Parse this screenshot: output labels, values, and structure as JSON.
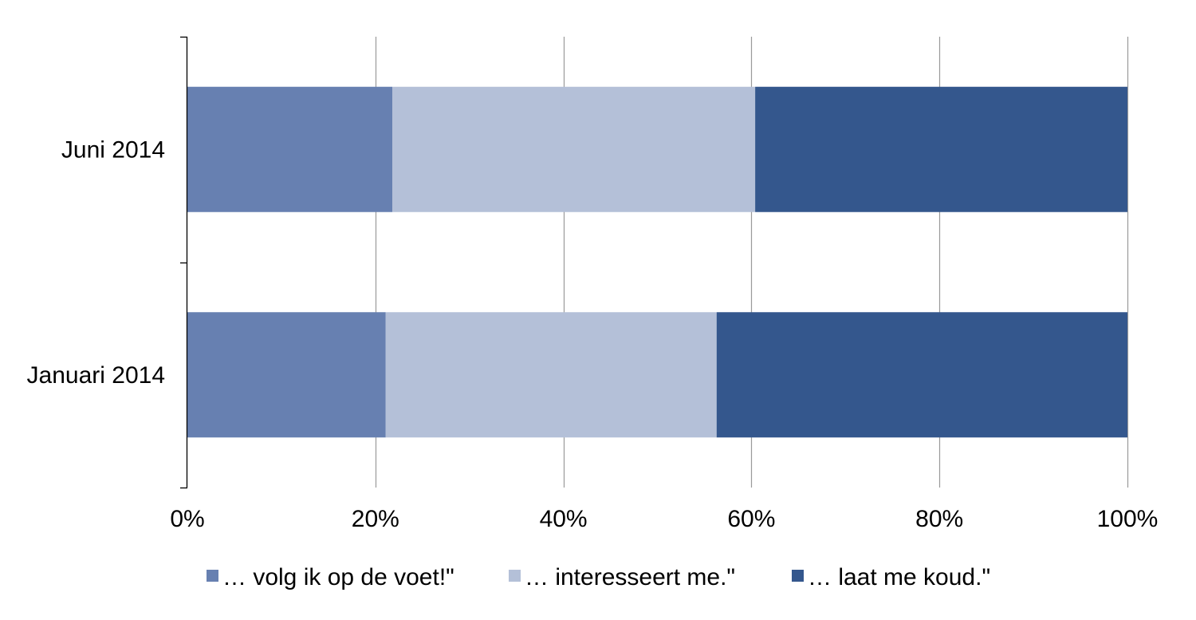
{
  "chart_data": {
    "type": "bar",
    "orientation": "horizontal",
    "stacked": true,
    "categories": [
      "Juni 2014",
      "Januari 2014"
    ],
    "series": [
      {
        "name": "… volg ik op de voet!\"",
        "values": [
          21.8,
          21.1
        ],
        "color": "#6780b1"
      },
      {
        "name": "… interesseert me.\"",
        "values": [
          38.6,
          35.2
        ],
        "color": "#b4c0d8"
      },
      {
        "name": "… laat me koud.\"",
        "values": [
          39.6,
          43.7
        ],
        "color": "#34578d"
      }
    ],
    "xlim": [
      0,
      100
    ],
    "x_ticks": [
      0,
      20,
      40,
      60,
      80,
      100
    ],
    "x_tick_labels": [
      "0%",
      "20%",
      "40%",
      "60%",
      "80%",
      "100%"
    ],
    "grid": "vertical",
    "legend_position": "bottom",
    "title": "",
    "xlabel": "",
    "ylabel": ""
  }
}
